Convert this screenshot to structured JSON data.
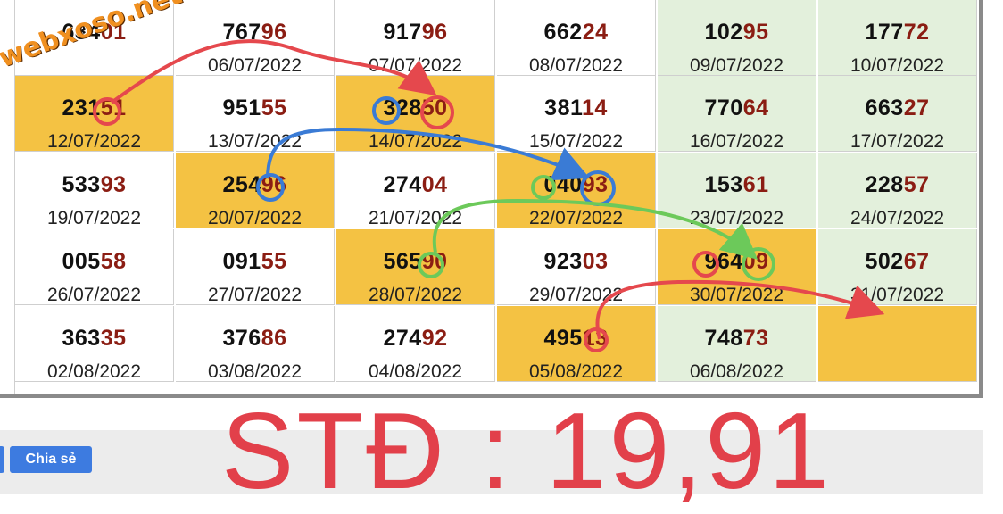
{
  "watermark": "webxoso.net",
  "results": [
    {
      "prefix": "684",
      "tail": "01",
      "date": "",
      "bg": "white"
    },
    {
      "prefix": "767",
      "tail": "96",
      "date": "06/07/2022",
      "bg": "white"
    },
    {
      "prefix": "917",
      "tail": "96",
      "date": "07/07/2022",
      "bg": "white"
    },
    {
      "prefix": "662",
      "tail": "24",
      "date": "08/07/2022",
      "bg": "white"
    },
    {
      "prefix": "102",
      "tail": "95",
      "date": "09/07/2022",
      "bg": "green"
    },
    {
      "prefix": "177",
      "tail": "72",
      "date": "10/07/2022",
      "bg": "green"
    },
    {
      "prefix": "231",
      "tail": "51",
      "date": "12/07/2022",
      "bg": "yellow"
    },
    {
      "prefix": "951",
      "tail": "55",
      "date": "13/07/2022",
      "bg": "white"
    },
    {
      "prefix": "328",
      "tail": "50",
      "date": "14/07/2022",
      "bg": "yellow"
    },
    {
      "prefix": "381",
      "tail": "14",
      "date": "15/07/2022",
      "bg": "white"
    },
    {
      "prefix": "770",
      "tail": "64",
      "date": "16/07/2022",
      "bg": "green"
    },
    {
      "prefix": "663",
      "tail": "27",
      "date": "17/07/2022",
      "bg": "green"
    },
    {
      "prefix": "533",
      "tail": "93",
      "date": "19/07/2022",
      "bg": "white"
    },
    {
      "prefix": "254",
      "tail": "96",
      "date": "20/07/2022",
      "bg": "yellow"
    },
    {
      "prefix": "274",
      "tail": "04",
      "date": "21/07/2022",
      "bg": "white"
    },
    {
      "prefix": "040",
      "tail": "93",
      "date": "22/07/2022",
      "bg": "yellow"
    },
    {
      "prefix": "153",
      "tail": "61",
      "date": "23/07/2022",
      "bg": "green"
    },
    {
      "prefix": "228",
      "tail": "57",
      "date": "24/07/2022",
      "bg": "green"
    },
    {
      "prefix": "005",
      "tail": "58",
      "date": "26/07/2022",
      "bg": "white"
    },
    {
      "prefix": "091",
      "tail": "55",
      "date": "27/07/2022",
      "bg": "white"
    },
    {
      "prefix": "565",
      "tail": "90",
      "date": "28/07/2022",
      "bg": "yellow"
    },
    {
      "prefix": "923",
      "tail": "03",
      "date": "29/07/2022",
      "bg": "white"
    },
    {
      "prefix": "964",
      "tail": "09",
      "date": "30/07/2022",
      "bg": "yellow"
    },
    {
      "prefix": "502",
      "tail": "67",
      "date": "31/07/2022",
      "bg": "green"
    },
    {
      "prefix": "363",
      "tail": "35",
      "date": "02/08/2022",
      "bg": "white"
    },
    {
      "prefix": "376",
      "tail": "86",
      "date": "03/08/2022",
      "bg": "white"
    },
    {
      "prefix": "274",
      "tail": "92",
      "date": "04/08/2022",
      "bg": "white"
    },
    {
      "prefix": "495",
      "tail": "13",
      "date": "05/08/2022",
      "bg": "yellow"
    },
    {
      "prefix": "748",
      "tail": "73",
      "date": "06/08/2022",
      "bg": "green"
    },
    {
      "prefix": "",
      "tail": "",
      "date": "",
      "bg": "yellow"
    }
  ],
  "footer": {
    "share_label": "Chia sẻ",
    "std_text": "STĐ : 19,91"
  },
  "colors": {
    "highlight_yellow": "#f4c243",
    "weekend_green": "#e3f0dc",
    "tail_red": "#8b1d13",
    "arrow_red": "#e5484d",
    "arrow_blue": "#3a7bd5",
    "arrow_green": "#6cc95a",
    "share_blue": "#3d7be0"
  }
}
